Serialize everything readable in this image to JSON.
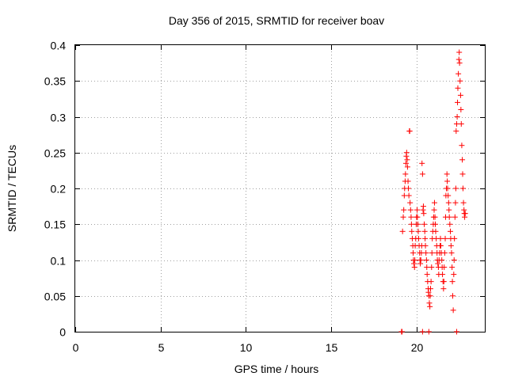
{
  "chart_data": {
    "type": "scatter",
    "title": "Day 356 of 2015, SRMTID for receiver boav",
    "xlabel": "GPS time / hours",
    "ylabel": "SRMTID / TECUs",
    "xlim": [
      0,
      24
    ],
    "ylim": [
      0,
      0.4
    ],
    "xticks": [
      0,
      5,
      10,
      15,
      20
    ],
    "xtick_labels": [
      "0",
      "5",
      "10",
      "15",
      "20"
    ],
    "yticks": [
      0,
      0.05,
      0.1,
      0.15,
      0.2,
      0.25,
      0.3,
      0.35,
      0.4
    ],
    "ytick_labels": [
      "0",
      "0.05",
      "0.1",
      "0.15",
      "0.2",
      "0.25",
      "0.3",
      "0.35",
      "0.4"
    ],
    "grid": true,
    "marker": "+",
    "color": "#ff0000",
    "series": [
      {
        "name": "SRMTID",
        "points": [
          [
            19.12,
            0.0
          ],
          [
            19.15,
            0.0
          ],
          [
            20.35,
            0.0
          ],
          [
            20.72,
            0.0
          ],
          [
            22.35,
            0.0
          ],
          [
            19.18,
            0.14
          ],
          [
            19.22,
            0.16
          ],
          [
            19.25,
            0.17
          ],
          [
            19.28,
            0.19
          ],
          [
            19.3,
            0.2
          ],
          [
            19.33,
            0.21
          ],
          [
            19.35,
            0.22
          ],
          [
            19.38,
            0.235
          ],
          [
            19.4,
            0.245
          ],
          [
            19.42,
            0.25
          ],
          [
            19.45,
            0.24
          ],
          [
            19.47,
            0.23
          ],
          [
            19.5,
            0.21
          ],
          [
            19.52,
            0.2
          ],
          [
            19.55,
            0.19
          ],
          [
            19.58,
            0.28
          ],
          [
            19.6,
            0.28
          ],
          [
            19.62,
            0.18
          ],
          [
            19.65,
            0.17
          ],
          [
            19.68,
            0.16
          ],
          [
            19.7,
            0.15
          ],
          [
            19.72,
            0.14
          ],
          [
            19.75,
            0.13
          ],
          [
            19.78,
            0.12
          ],
          [
            19.8,
            0.11
          ],
          [
            19.82,
            0.1
          ],
          [
            19.85,
            0.095
          ],
          [
            19.88,
            0.09
          ],
          [
            19.9,
            0.1
          ],
          [
            19.92,
            0.12
          ],
          [
            19.95,
            0.13
          ],
          [
            19.98,
            0.15
          ],
          [
            20.0,
            0.16
          ],
          [
            20.03,
            0.17
          ],
          [
            20.05,
            0.16
          ],
          [
            20.08,
            0.15
          ],
          [
            20.1,
            0.14
          ],
          [
            20.12,
            0.13
          ],
          [
            20.15,
            0.12
          ],
          [
            20.18,
            0.11
          ],
          [
            20.2,
            0.1
          ],
          [
            20.22,
            0.095
          ],
          [
            20.25,
            0.1
          ],
          [
            20.28,
            0.11
          ],
          [
            20.3,
            0.12
          ],
          [
            20.32,
            0.235
          ],
          [
            20.35,
            0.22
          ],
          [
            20.38,
            0.17
          ],
          [
            20.4,
            0.175
          ],
          [
            20.42,
            0.165
          ],
          [
            20.45,
            0.15
          ],
          [
            20.48,
            0.14
          ],
          [
            20.5,
            0.13
          ],
          [
            20.52,
            0.12
          ],
          [
            20.55,
            0.11
          ],
          [
            20.58,
            0.1
          ],
          [
            20.6,
            0.09
          ],
          [
            20.62,
            0.08
          ],
          [
            20.65,
            0.07
          ],
          [
            20.68,
            0.06
          ],
          [
            20.7,
            0.055
          ],
          [
            20.72,
            0.05
          ],
          [
            20.75,
            0.04
          ],
          [
            20.78,
            0.035
          ],
          [
            20.8,
            0.05
          ],
          [
            20.82,
            0.06
          ],
          [
            20.85,
            0.07
          ],
          [
            20.88,
            0.09
          ],
          [
            20.9,
            0.11
          ],
          [
            20.92,
            0.13
          ],
          [
            20.95,
            0.14
          ],
          [
            20.98,
            0.15
          ],
          [
            21.0,
            0.16
          ],
          [
            21.03,
            0.17
          ],
          [
            21.05,
            0.18
          ],
          [
            21.08,
            0.16
          ],
          [
            21.1,
            0.15
          ],
          [
            21.12,
            0.14
          ],
          [
            21.15,
            0.13
          ],
          [
            21.18,
            0.12
          ],
          [
            21.2,
            0.11
          ],
          [
            21.22,
            0.1
          ],
          [
            21.25,
            0.095
          ],
          [
            21.28,
            0.09
          ],
          [
            21.3,
            0.08
          ],
          [
            21.32,
            0.1
          ],
          [
            21.35,
            0.11
          ],
          [
            21.38,
            0.12
          ],
          [
            21.4,
            0.13
          ],
          [
            21.42,
            0.12
          ],
          [
            21.45,
            0.11
          ],
          [
            21.48,
            0.1
          ],
          [
            21.5,
            0.09
          ],
          [
            21.52,
            0.08
          ],
          [
            21.55,
            0.07
          ],
          [
            21.58,
            0.06
          ],
          [
            21.6,
            0.07
          ],
          [
            21.62,
            0.09
          ],
          [
            21.65,
            0.11
          ],
          [
            21.68,
            0.13
          ],
          [
            21.7,
            0.16
          ],
          [
            21.72,
            0.19
          ],
          [
            21.75,
            0.2
          ],
          [
            21.78,
            0.22
          ],
          [
            21.8,
            0.21
          ],
          [
            21.82,
            0.2
          ],
          [
            21.85,
            0.19
          ],
          [
            21.88,
            0.18
          ],
          [
            21.9,
            0.17
          ],
          [
            21.92,
            0.16
          ],
          [
            21.95,
            0.15
          ],
          [
            21.98,
            0.14
          ],
          [
            22.0,
            0.13
          ],
          [
            22.02,
            0.12
          ],
          [
            22.05,
            0.11
          ],
          [
            22.08,
            0.09
          ],
          [
            22.1,
            0.07
          ],
          [
            22.12,
            0.05
          ],
          [
            22.15,
            0.03
          ],
          [
            22.18,
            0.08
          ],
          [
            22.2,
            0.1
          ],
          [
            22.22,
            0.13
          ],
          [
            22.25,
            0.16
          ],
          [
            22.28,
            0.18
          ],
          [
            22.3,
            0.2
          ],
          [
            22.32,
            0.28
          ],
          [
            22.35,
            0.29
          ],
          [
            22.38,
            0.3
          ],
          [
            22.4,
            0.32
          ],
          [
            22.42,
            0.34
          ],
          [
            22.45,
            0.36
          ],
          [
            22.48,
            0.38
          ],
          [
            22.5,
            0.39
          ],
          [
            22.52,
            0.375
          ],
          [
            22.55,
            0.35
          ],
          [
            22.58,
            0.33
          ],
          [
            22.6,
            0.31
          ],
          [
            22.62,
            0.29
          ],
          [
            22.65,
            0.26
          ],
          [
            22.68,
            0.24
          ],
          [
            22.7,
            0.22
          ],
          [
            22.72,
            0.2
          ],
          [
            22.75,
            0.18
          ],
          [
            22.78,
            0.17
          ],
          [
            22.8,
            0.165
          ],
          [
            22.82,
            0.16
          ],
          [
            22.85,
            0.165
          ]
        ]
      }
    ]
  }
}
